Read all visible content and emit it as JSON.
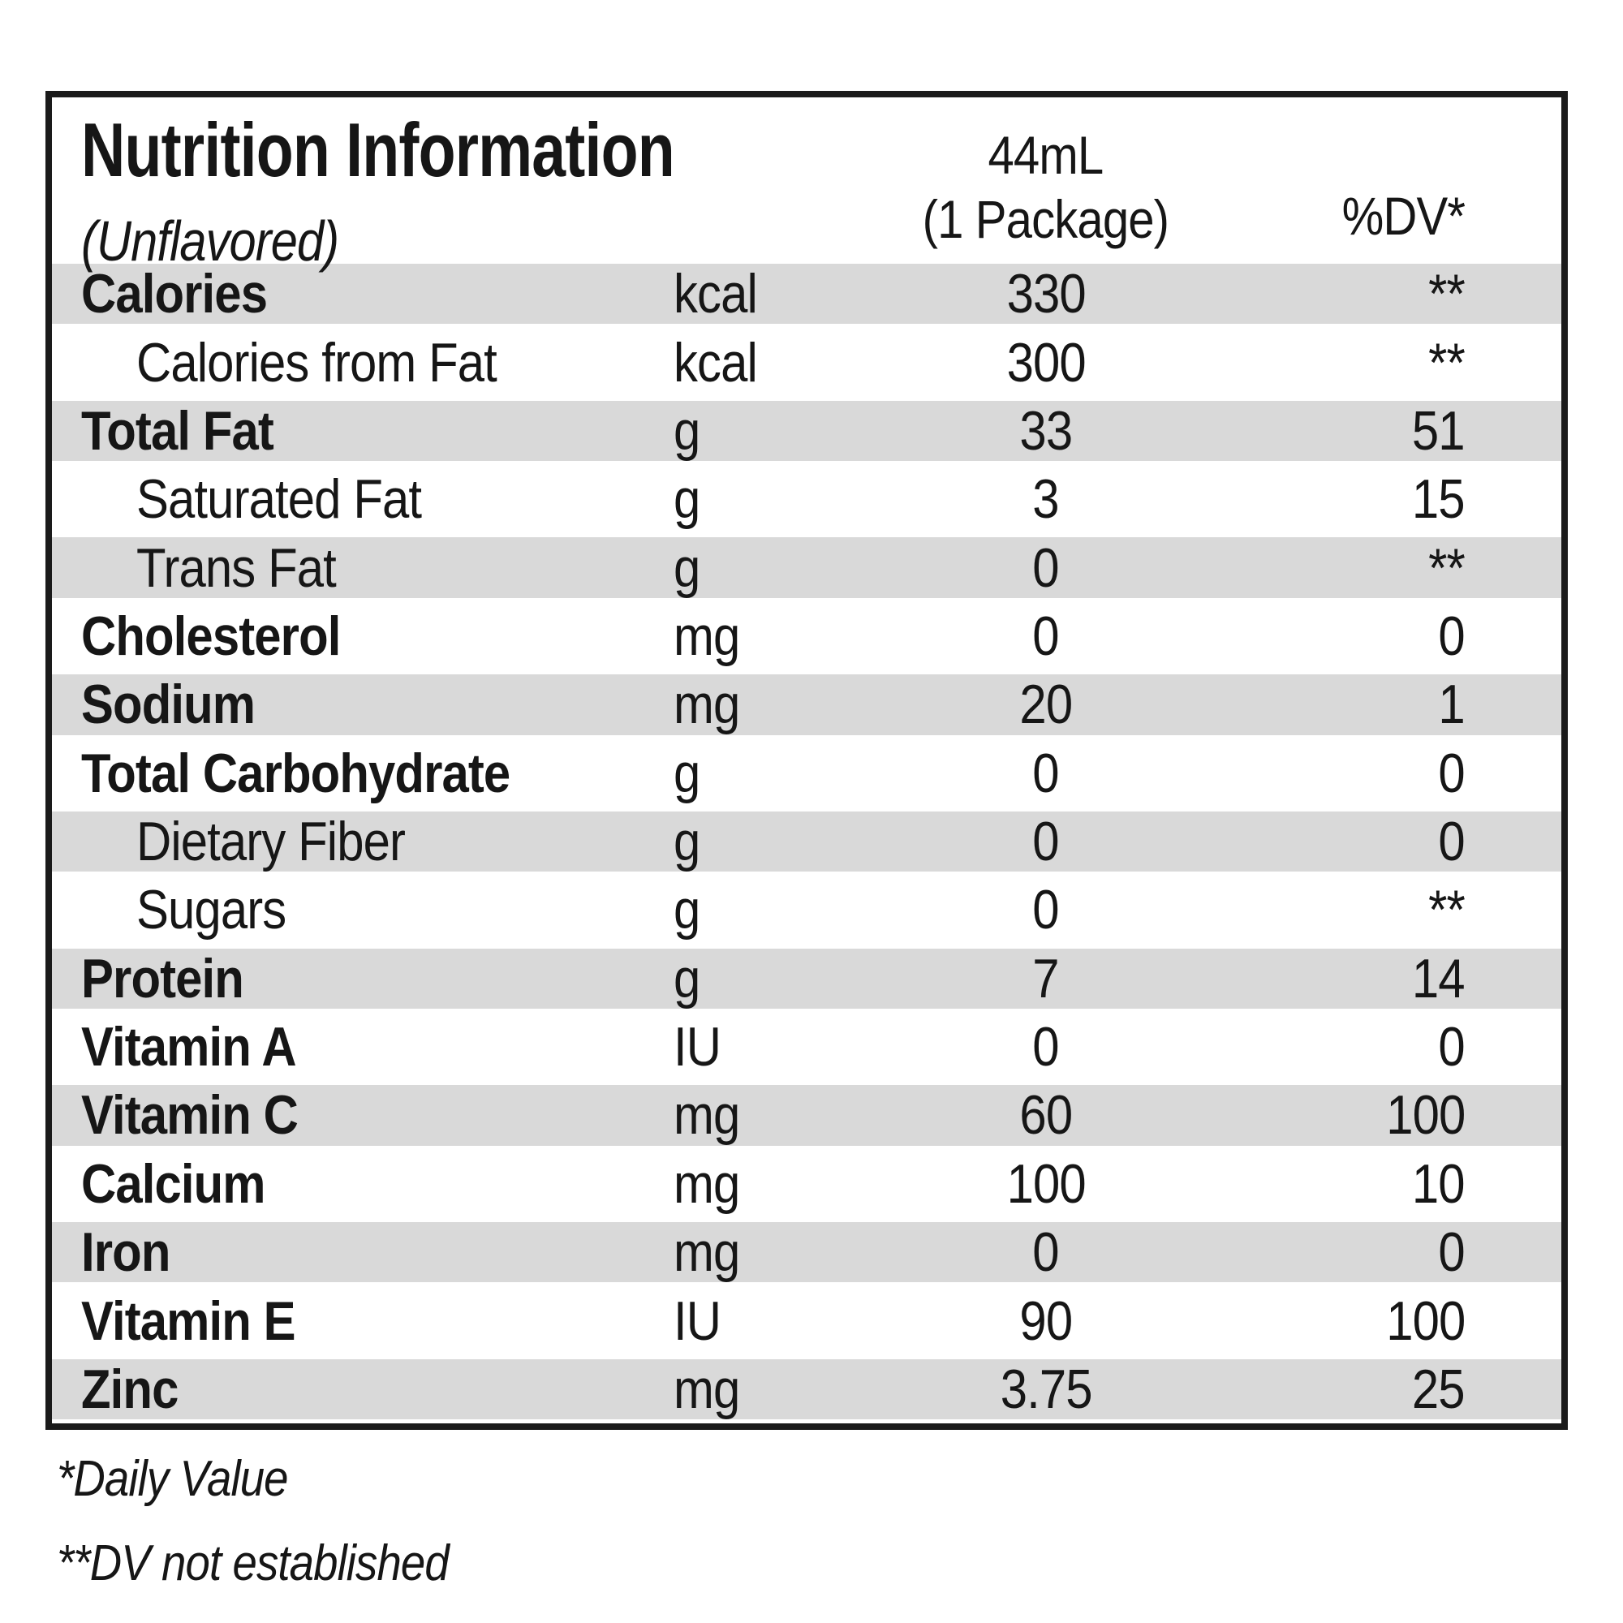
{
  "label": {
    "title": "Nutrition Information",
    "flavor_note": "(Unflavored)",
    "serving_header": {
      "line1": "44mL",
      "line2": "(1 Package)"
    },
    "dv_header": "%DV*",
    "colors": {
      "shaded_row": "#d9d9d9",
      "border": "#1a1a1a",
      "text": "#161616"
    },
    "rows": [
      {
        "name": "Calories",
        "unit": "kcal",
        "amount": "330",
        "dv": "**",
        "sub": false
      },
      {
        "name": "Calories from Fat",
        "unit": "kcal",
        "amount": "300",
        "dv": "**",
        "sub": true
      },
      {
        "name": "Total Fat",
        "unit": "g",
        "amount": "33",
        "dv": "51",
        "sub": false
      },
      {
        "name": "Saturated Fat",
        "unit": "g",
        "amount": "3",
        "dv": "15",
        "sub": true
      },
      {
        "name": "Trans Fat",
        "unit": "g",
        "amount": "0",
        "dv": "**",
        "sub": true
      },
      {
        "name": "Cholesterol",
        "unit": "mg",
        "amount": "0",
        "dv": "0",
        "sub": false
      },
      {
        "name": "Sodium",
        "unit": "mg",
        "amount": "20",
        "dv": "1",
        "sub": false
      },
      {
        "name": "Total Carbohydrate",
        "unit": "g",
        "amount": "0",
        "dv": "0",
        "sub": false
      },
      {
        "name": "Dietary Fiber",
        "unit": "g",
        "amount": "0",
        "dv": "0",
        "sub": true
      },
      {
        "name": "Sugars",
        "unit": "g",
        "amount": "0",
        "dv": "**",
        "sub": true
      },
      {
        "name": "Protein",
        "unit": "g",
        "amount": "7",
        "dv": "14",
        "sub": false
      },
      {
        "name": "Vitamin A",
        "unit": "IU",
        "amount": "0",
        "dv": "0",
        "sub": false
      },
      {
        "name": "Vitamin C",
        "unit": "mg",
        "amount": "60",
        "dv": "100",
        "sub": false
      },
      {
        "name": "Calcium",
        "unit": "mg",
        "amount": "100",
        "dv": "10",
        "sub": false
      },
      {
        "name": "Iron",
        "unit": "mg",
        "amount": "0",
        "dv": "0",
        "sub": false
      },
      {
        "name": "Vitamin E",
        "unit": "IU",
        "amount": "90",
        "dv": "100",
        "sub": false
      },
      {
        "name": "Zinc",
        "unit": "mg",
        "amount": "3.75",
        "dv": "25",
        "sub": false
      }
    ],
    "footnotes": [
      "*Daily Value",
      "**DV not established"
    ]
  }
}
